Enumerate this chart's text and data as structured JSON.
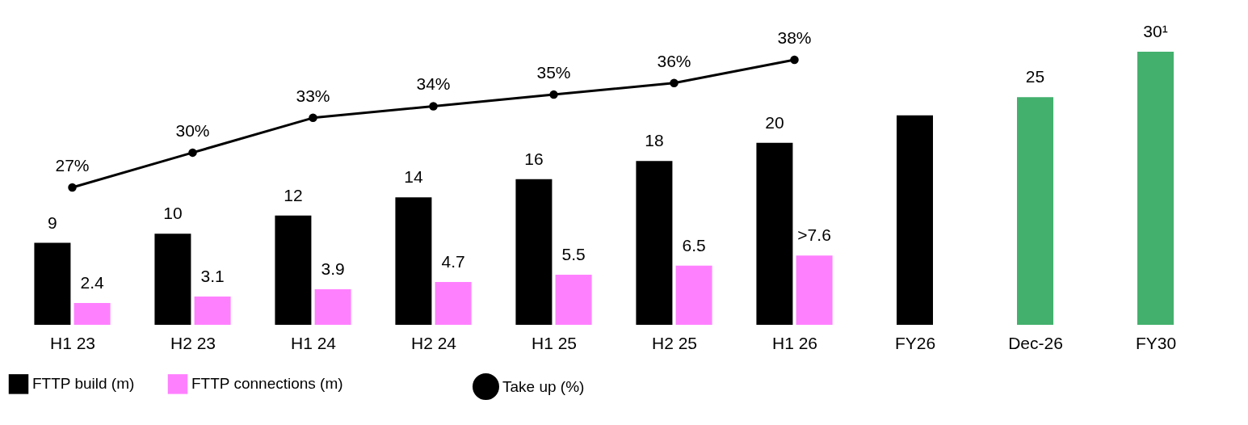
{
  "chart_data": {
    "type": "bar",
    "categories": [
      "H1 23",
      "H2 23",
      "H1 24",
      "H2 24",
      "H1 25",
      "H2 25",
      "H1 26",
      "FY26",
      "Dec-26",
      "FY30"
    ],
    "series": [
      {
        "name": "FTTP build (m)",
        "color": "#000000",
        "values": [
          9,
          10,
          12,
          14,
          16,
          18,
          20,
          23,
          null,
          null
        ],
        "value_labels": [
          "9",
          "10",
          "12",
          "14",
          "16",
          "18",
          "20",
          null,
          null,
          null
        ]
      },
      {
        "name": "FTTP connections (m)",
        "color": "#ff80ff",
        "values": [
          2.4,
          3.1,
          3.9,
          4.7,
          5.5,
          6.5,
          7.6,
          null,
          null,
          null
        ],
        "value_labels": [
          "2.4",
          "3.1",
          "3.9",
          "4.7",
          "5.5",
          "6.5",
          ">7.6",
          null,
          null,
          null
        ]
      },
      {
        "color": "#43b06d",
        "values": [
          null,
          null,
          null,
          null,
          null,
          null,
          null,
          null,
          25,
          30
        ],
        "value_labels": [
          null,
          null,
          null,
          null,
          null,
          null,
          null,
          null,
          "25",
          "30¹"
        ]
      },
      {
        "name": "Take up (%)",
        "type": "line",
        "axis": "y2",
        "color": "#000000",
        "marker": "circle",
        "values": [
          27,
          30,
          33,
          34,
          35,
          36,
          38,
          null,
          null,
          null
        ],
        "value_labels": [
          "27%",
          "30%",
          "33%",
          "34%",
          "35%",
          "36%",
          "38%",
          null,
          null,
          null
        ]
      }
    ],
    "tick_labels": "x",
    "grid": false,
    "legend": "bottom left"
  }
}
